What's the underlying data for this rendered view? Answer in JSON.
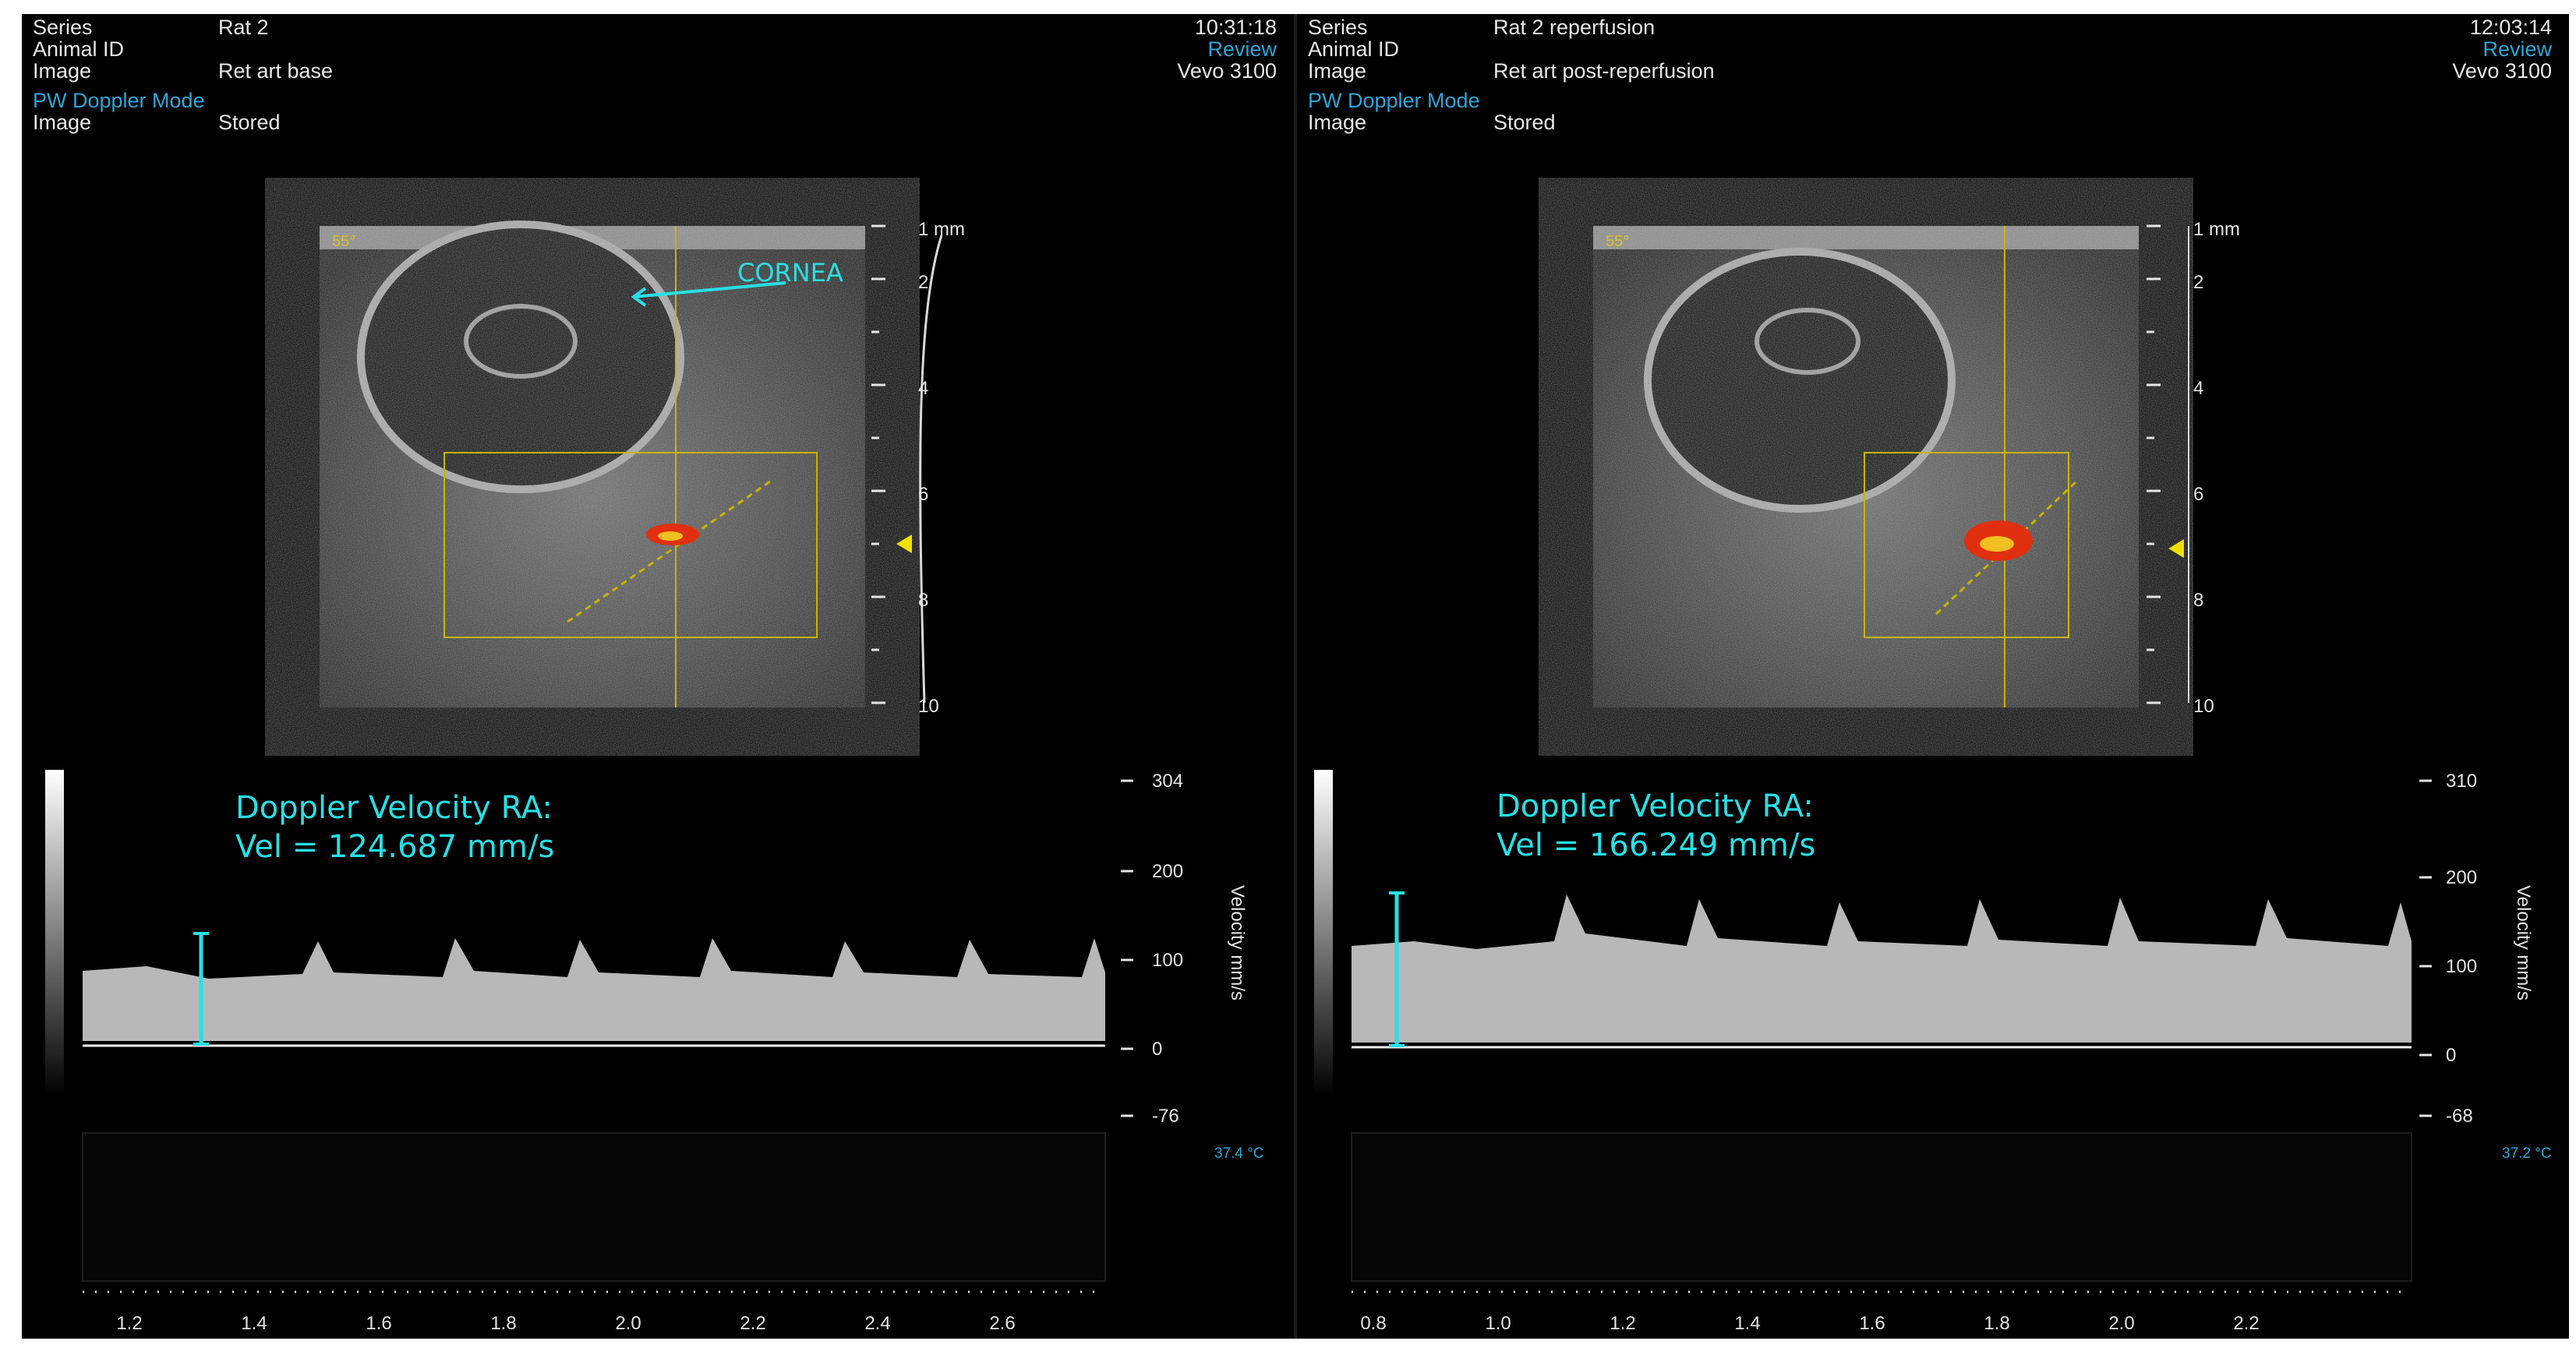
{
  "panels": [
    {
      "series_label": "Series",
      "series_value": "Rat 2",
      "animal_label": "Animal ID",
      "image_label": "Image",
      "image_value": "Ret art base",
      "mode": "PW Doppler Mode",
      "image2_label": "Image",
      "image2_value": "Stored",
      "time": "10:31:18",
      "review": "Review",
      "device": "Vevo 3100",
      "angle": "55°",
      "annotation": "CORNEA",
      "depth_unit": "1 mm",
      "depth_ticks": [
        "2",
        "4",
        "6",
        "8",
        "10"
      ],
      "velocity_title": "Doppler Velocity RA:",
      "velocity_value": "Vel = 124.687 mm/s",
      "velocity_ticks": [
        "304",
        "200",
        "100",
        "0",
        "-76"
      ],
      "velocity_axis_label": "Velocity mm/s",
      "temperature": "37.4 °C",
      "time_ticks": [
        "1.2",
        "1.4",
        "1.6",
        "1.8",
        "2.0",
        "2.2",
        "2.4",
        "2.6"
      ]
    },
    {
      "series_label": "Series",
      "series_value": "Rat 2 reperfusion",
      "animal_label": "Animal ID",
      "image_label": "Image",
      "image_value": "Ret art post-reperfusion",
      "mode": "PW Doppler Mode",
      "image2_label": "Image",
      "image2_value": "Stored",
      "time": "12:03:14",
      "review": "Review",
      "device": "Vevo 3100",
      "angle": "55°",
      "annotation": "",
      "depth_unit": "1 mm",
      "depth_ticks": [
        "2",
        "4",
        "6",
        "8",
        "10"
      ],
      "velocity_title": "Doppler Velocity RA:",
      "velocity_value": "Vel = 166.249 mm/s",
      "velocity_ticks": [
        "310",
        "200",
        "100",
        "0",
        "-68"
      ],
      "velocity_axis_label": "Velocity mm/s",
      "temperature": "37.2 °C",
      "time_ticks": [
        "0.8",
        "1.0",
        "1.2",
        "1.4",
        "1.6",
        "1.8",
        "2.0",
        "2.2"
      ]
    }
  ],
  "colors": {
    "cyan": "#27e0e6",
    "header_blue": "#2aa7d8",
    "doppler_box": "#c8b400",
    "flow_red": "#e03010"
  }
}
